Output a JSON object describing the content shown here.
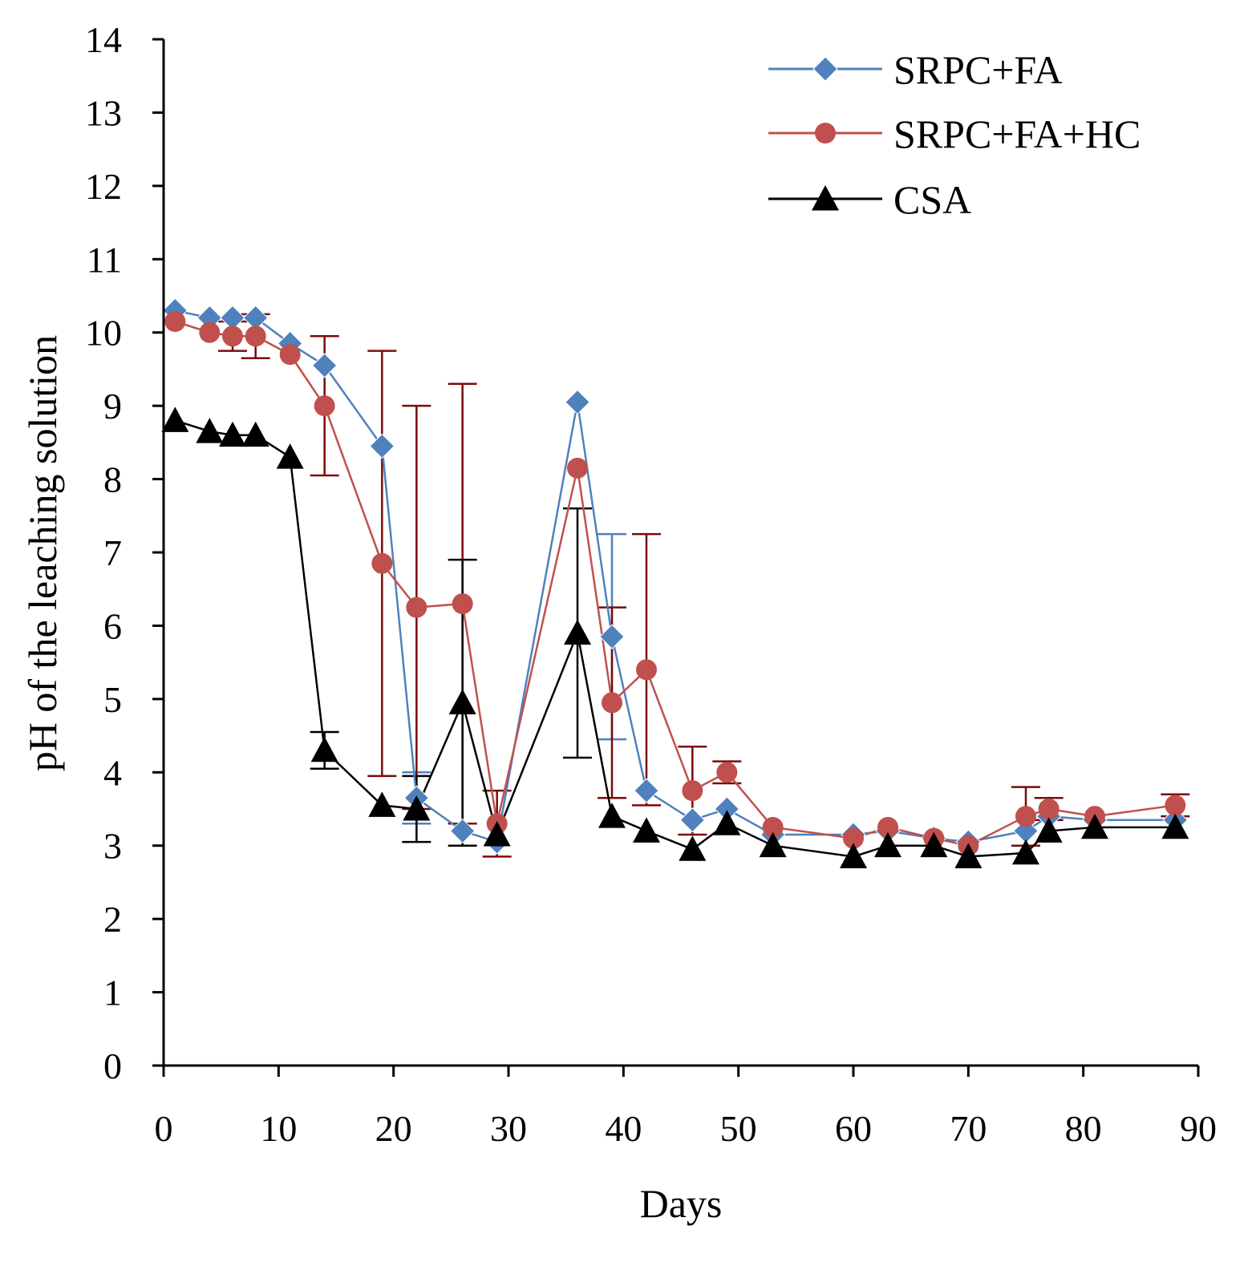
{
  "chart_data": {
    "type": "line",
    "title": "",
    "xlabel": "Days",
    "ylabel": "pH of the leaching solution",
    "xlim": [
      0,
      90
    ],
    "ylim": [
      0,
      14
    ],
    "xticks": [
      0,
      10,
      20,
      30,
      40,
      50,
      60,
      70,
      80,
      90
    ],
    "yticks": [
      0,
      1,
      2,
      3,
      4,
      5,
      6,
      7,
      8,
      9,
      10,
      11,
      12,
      13,
      14
    ],
    "grid": false,
    "legend_position": "top-right",
    "series": [
      {
        "name": "SRPC+FA",
        "color": "#4F81BD",
        "marker": "diamond",
        "x": [
          1,
          4,
          6,
          8,
          11,
          14,
          19,
          22,
          26,
          29,
          36,
          39,
          42,
          46,
          49,
          53,
          60,
          63,
          67,
          70,
          75,
          77,
          81,
          88
        ],
        "y": [
          10.3,
          10.2,
          10.2,
          10.2,
          9.85,
          9.55,
          8.45,
          3.65,
          3.2,
          3.05,
          9.05,
          5.85,
          3.75,
          3.35,
          3.5,
          3.15,
          3.15,
          3.2,
          3.1,
          3.05,
          3.2,
          3.4,
          3.35,
          3.35
        ],
        "err": [
          0,
          0,
          0,
          0,
          0,
          0,
          0,
          0.35,
          0,
          0,
          0,
          1.4,
          0,
          0,
          0,
          0,
          0,
          0,
          0,
          0,
          0,
          0,
          0,
          0
        ]
      },
      {
        "name": "SRPC+FA+HC",
        "color": "#C0504D",
        "marker": "circle",
        "x": [
          1,
          4,
          6,
          8,
          11,
          14,
          19,
          22,
          26,
          29,
          36,
          39,
          42,
          46,
          49,
          53,
          60,
          63,
          67,
          70,
          75,
          77,
          81,
          88
        ],
        "y": [
          10.15,
          10.0,
          9.95,
          9.95,
          9.7,
          9.0,
          6.85,
          6.25,
          6.3,
          3.3,
          8.15,
          4.95,
          5.4,
          3.75,
          4.0,
          3.25,
          3.1,
          3.25,
          3.1,
          3.0,
          3.4,
          3.5,
          3.4,
          3.55
        ],
        "err": [
          0,
          0,
          0.2,
          0.3,
          0,
          0.95,
          2.9,
          2.75,
          3.0,
          0.45,
          0,
          1.3,
          1.85,
          0.6,
          0.15,
          0,
          0,
          0,
          0,
          0,
          0.4,
          0.15,
          0,
          0.15
        ],
        "errbar_color": "#7B0A0A"
      },
      {
        "name": "CSA",
        "color": "#000000",
        "marker": "triangle",
        "x": [
          1,
          4,
          6,
          8,
          11,
          14,
          19,
          22,
          26,
          29,
          36,
          39,
          42,
          46,
          49,
          53,
          60,
          63,
          67,
          70,
          75,
          77,
          81,
          88
        ],
        "y": [
          8.8,
          8.65,
          8.6,
          8.6,
          8.3,
          4.3,
          3.55,
          3.5,
          4.95,
          3.15,
          5.9,
          3.4,
          3.2,
          2.95,
          3.3,
          3.0,
          2.85,
          3.0,
          3.0,
          2.85,
          2.9,
          3.2,
          3.25,
          3.25
        ],
        "err": [
          0,
          0,
          0,
          0,
          0,
          0.25,
          0,
          0.45,
          1.95,
          0,
          1.7,
          0,
          0,
          0,
          0,
          0,
          0,
          0,
          0,
          0,
          0,
          0,
          0,
          0
        ]
      }
    ]
  }
}
